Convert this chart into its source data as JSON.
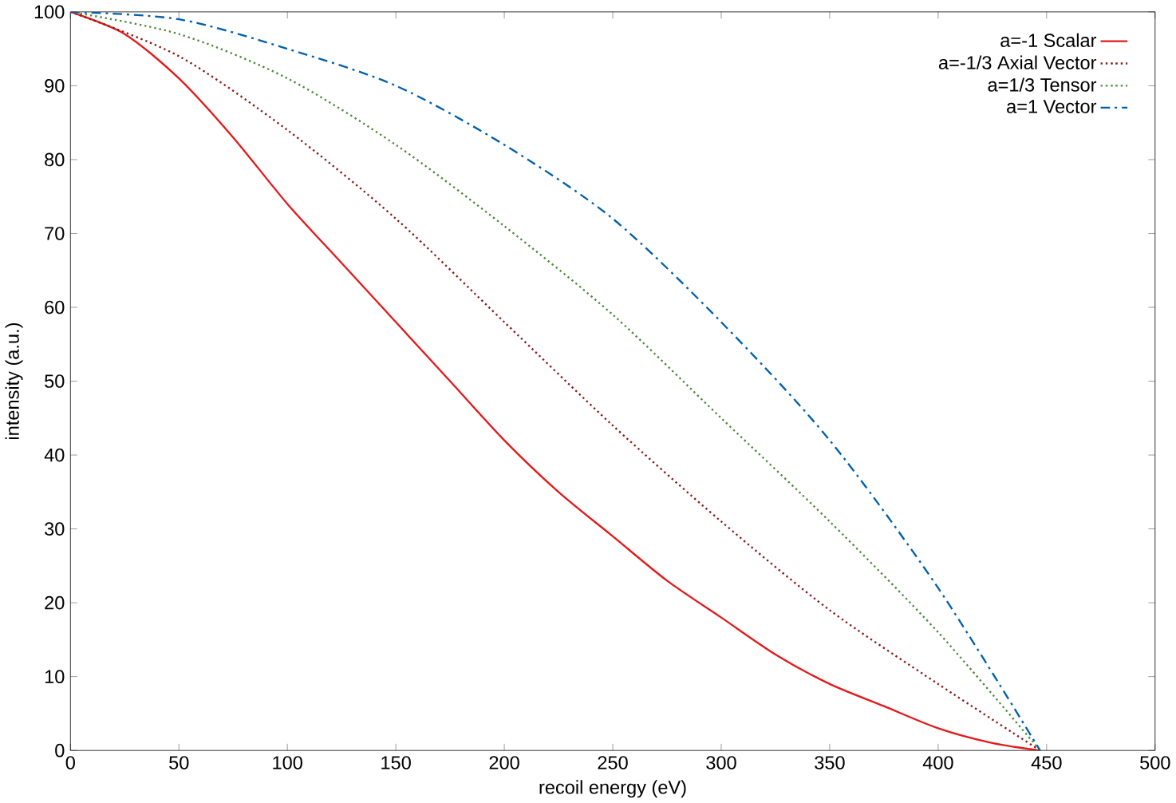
{
  "chart_data": {
    "type": "line",
    "xlabel": "recoil energy (eV)",
    "ylabel": "intensity (a.u.)",
    "xlim": [
      0,
      500
    ],
    "ylim": [
      0,
      100
    ],
    "xticks": [
      0,
      50,
      100,
      150,
      200,
      250,
      300,
      350,
      400,
      450,
      500
    ],
    "yticks": [
      0,
      10,
      20,
      30,
      40,
      50,
      60,
      70,
      80,
      90,
      100
    ],
    "grid": false,
    "legend": "top right",
    "marker": "none",
    "series": [
      {
        "name": "a=-1 Scalar",
        "color": "#e41a1c",
        "line_style": "solid",
        "x": [
          0,
          25,
          50,
          75,
          100,
          125,
          150,
          175,
          200,
          225,
          250,
          275,
          300,
          325,
          350,
          375,
          400,
          425,
          447
        ],
        "values": [
          100,
          97,
          91,
          83,
          74,
          66,
          58,
          50,
          42,
          35,
          29,
          23,
          18,
          13,
          9,
          6,
          3,
          1,
          0
        ]
      },
      {
        "name": "a=-1/3 Axial Vector",
        "color": "#8b1a1a",
        "line_style": "dotted",
        "x": [
          0,
          50,
          100,
          150,
          200,
          250,
          300,
          350,
          400,
          447
        ],
        "values": [
          100,
          94,
          84,
          72,
          58,
          44,
          31,
          19,
          9,
          0
        ]
      },
      {
        "name": "a=1/3 Tensor",
        "color": "#4d8a3a",
        "line_style": "dotted",
        "x": [
          0,
          50,
          100,
          150,
          200,
          250,
          300,
          350,
          400,
          447
        ],
        "values": [
          100,
          97,
          91,
          82,
          71,
          59,
          45,
          31,
          16,
          0
        ]
      },
      {
        "name": "a=1 Vector",
        "color": "#0060ad",
        "line_style": "dashed",
        "x": [
          0,
          50,
          100,
          150,
          200,
          250,
          300,
          350,
          400,
          447
        ],
        "values": [
          100,
          99,
          95,
          90,
          82,
          72,
          58,
          42,
          22,
          0
        ]
      }
    ]
  }
}
